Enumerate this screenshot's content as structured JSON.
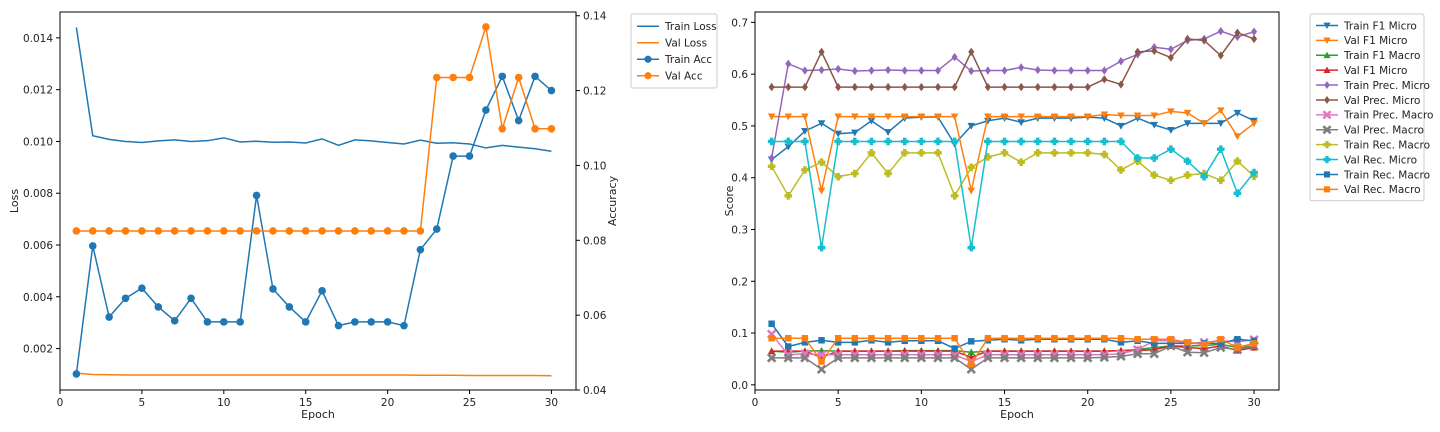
{
  "chart_data": [
    {
      "type": "line",
      "xlabel": "Epoch",
      "ylabel": "Loss",
      "y2label": "Accuracy",
      "xlim": [
        0,
        31.5
      ],
      "ylim": [
        0.0004,
        0.015
      ],
      "y2lim": [
        0.04,
        0.141
      ],
      "xticks": [
        0,
        5,
        10,
        15,
        20,
        25,
        30
      ],
      "yticks": [
        0.002,
        0.004,
        0.006,
        0.008,
        0.01,
        0.012,
        0.014
      ],
      "ytick_labels": [
        "0.002",
        "0.004",
        "0.006",
        "0.008",
        "0.010",
        "0.012",
        "0.014"
      ],
      "y2ticks": [
        0.04,
        0.06,
        0.08,
        0.1,
        0.12,
        0.14
      ],
      "y2tick_labels": [
        "0.04",
        "0.06",
        "0.08",
        "0.10",
        "0.12",
        "0.14"
      ],
      "legend_position": "outside-right-top",
      "x": [
        1,
        2,
        3,
        4,
        5,
        6,
        7,
        8,
        9,
        10,
        11,
        12,
        13,
        14,
        15,
        16,
        17,
        18,
        19,
        20,
        21,
        22,
        23,
        24,
        25,
        26,
        27,
        28,
        29,
        30
      ],
      "series": [
        {
          "name": "Train Loss",
          "axis": "left",
          "color": "#1f77b4",
          "marker": "none",
          "values": [
            0.0144,
            0.01022,
            0.01008,
            0.01,
            0.00996,
            0.01002,
            0.01006,
            0.01,
            0.01003,
            0.01014,
            0.00998,
            0.01001,
            0.00997,
            0.00998,
            0.00994,
            0.0101,
            0.00985,
            0.01006,
            0.01002,
            0.00996,
            0.0099,
            0.01005,
            0.00993,
            0.00995,
            0.0099,
            0.00975,
            0.00985,
            0.00978,
            0.00972,
            0.00962
          ]
        },
        {
          "name": "Val Loss",
          "axis": "left",
          "color": "#ff7f0e",
          "marker": "none",
          "values": [
            0.00105,
            0.001,
            0.00099,
            0.00098,
            0.00098,
            0.00098,
            0.00098,
            0.00098,
            0.00098,
            0.00098,
            0.00098,
            0.00098,
            0.00098,
            0.00098,
            0.00098,
            0.00098,
            0.00098,
            0.00098,
            0.00098,
            0.00098,
            0.00098,
            0.00097,
            0.00097,
            0.00097,
            0.00096,
            0.00096,
            0.00096,
            0.00096,
            0.00096,
            0.00095
          ]
        },
        {
          "name": "Train Acc",
          "axis": "right",
          "color": "#1f77b4",
          "marker": "circle",
          "values": [
            0.0443,
            0.0785,
            0.0595,
            0.0645,
            0.0672,
            0.0622,
            0.0585,
            0.0645,
            0.0582,
            0.0582,
            0.0582,
            0.092,
            0.067,
            0.0622,
            0.0582,
            0.0665,
            0.0572,
            0.0582,
            0.0582,
            0.0582,
            0.0572,
            0.0775,
            0.083,
            0.1025,
            0.1025,
            0.1148,
            0.1238,
            0.112,
            0.1238,
            0.12
          ]
        },
        {
          "name": "Val Acc",
          "axis": "right",
          "color": "#ff7f0e",
          "marker": "circle",
          "values": [
            0.0825,
            0.0825,
            0.0825,
            0.0825,
            0.0825,
            0.0825,
            0.0825,
            0.0825,
            0.0825,
            0.0825,
            0.0825,
            0.0825,
            0.0825,
            0.0825,
            0.0825,
            0.0825,
            0.0825,
            0.0825,
            0.0825,
            0.0825,
            0.0825,
            0.0825,
            0.1235,
            0.1235,
            0.1235,
            0.137,
            0.1098,
            0.1235,
            0.1098,
            0.1098
          ]
        }
      ]
    },
    {
      "type": "line",
      "xlabel": "Epoch",
      "ylabel": "Score",
      "xlim": [
        0,
        31.5
      ],
      "ylim": [
        -0.01,
        0.72
      ],
      "xticks": [
        0,
        5,
        10,
        15,
        20,
        25,
        30
      ],
      "yticks": [
        0.0,
        0.1,
        0.2,
        0.3,
        0.4,
        0.5,
        0.6,
        0.7
      ],
      "ytick_labels": [
        "0.0",
        "0.1",
        "0.2",
        "0.3",
        "0.4",
        "0.5",
        "0.6",
        "0.7"
      ],
      "legend_position": "outside-right-top",
      "x": [
        1,
        2,
        3,
        4,
        5,
        6,
        7,
        8,
        9,
        10,
        11,
        12,
        13,
        14,
        15,
        16,
        17,
        18,
        19,
        20,
        21,
        22,
        23,
        24,
        25,
        26,
        27,
        28,
        29,
        30
      ],
      "series": [
        {
          "name": "Train F1 Micro",
          "color": "#1f77b4",
          "marker": "triangle-down",
          "values": [
            0.435,
            0.46,
            0.49,
            0.505,
            0.485,
            0.487,
            0.51,
            0.488,
            0.515,
            0.517,
            0.517,
            0.465,
            0.5,
            0.51,
            0.515,
            0.507,
            0.515,
            0.515,
            0.515,
            0.517,
            0.515,
            0.5,
            0.515,
            0.502,
            0.492,
            0.505,
            0.505,
            0.505,
            0.525,
            0.51
          ]
        },
        {
          "name": "Val F1 Micro",
          "color": "#ff7f0e",
          "marker": "triangle-down",
          "values": [
            0.518,
            0.518,
            0.518,
            0.375,
            0.518,
            0.518,
            0.518,
            0.518,
            0.518,
            0.518,
            0.518,
            0.518,
            0.375,
            0.518,
            0.518,
            0.518,
            0.518,
            0.518,
            0.518,
            0.518,
            0.522,
            0.52,
            0.52,
            0.52,
            0.528,
            0.525,
            0.505,
            0.53,
            0.48,
            0.505
          ]
        },
        {
          "name": "Train F1 Macro",
          "color": "#2ca02c",
          "marker": "triangle-up",
          "values": [
            0.065,
            0.063,
            0.065,
            0.066,
            0.065,
            0.065,
            0.065,
            0.065,
            0.066,
            0.066,
            0.066,
            0.066,
            0.063,
            0.065,
            0.065,
            0.065,
            0.065,
            0.065,
            0.065,
            0.065,
            0.065,
            0.066,
            0.068,
            0.072,
            0.075,
            0.075,
            0.076,
            0.078,
            0.072,
            0.075
          ]
        },
        {
          "name": "Val F1 Micro",
          "color": "#d62728",
          "marker": "triangle-up",
          "values": [
            0.065,
            0.065,
            0.065,
            0.053,
            0.065,
            0.065,
            0.065,
            0.065,
            0.065,
            0.065,
            0.065,
            0.065,
            0.053,
            0.065,
            0.065,
            0.065,
            0.065,
            0.065,
            0.065,
            0.065,
            0.065,
            0.066,
            0.066,
            0.068,
            0.075,
            0.072,
            0.07,
            0.075,
            0.066,
            0.072
          ]
        },
        {
          "name": "Train Prec. Micro",
          "color": "#9467bd",
          "marker": "diamond",
          "values": [
            0.438,
            0.62,
            0.607,
            0.608,
            0.61,
            0.606,
            0.607,
            0.608,
            0.607,
            0.607,
            0.607,
            0.633,
            0.606,
            0.607,
            0.607,
            0.613,
            0.608,
            0.607,
            0.607,
            0.607,
            0.607,
            0.625,
            0.638,
            0.652,
            0.648,
            0.665,
            0.668,
            0.683,
            0.672,
            0.682
          ]
        },
        {
          "name": "Val Prec. Micro",
          "color": "#8c564b",
          "marker": "diamond",
          "values": [
            0.575,
            0.575,
            0.575,
            0.643,
            0.575,
            0.575,
            0.575,
            0.575,
            0.575,
            0.575,
            0.575,
            0.575,
            0.643,
            0.575,
            0.575,
            0.575,
            0.575,
            0.575,
            0.575,
            0.575,
            0.59,
            0.58,
            0.643,
            0.645,
            0.632,
            0.668,
            0.665,
            0.636,
            0.68,
            0.668
          ]
        },
        {
          "name": "Train Prec. Macro",
          "color": "#e377c2",
          "marker": "x",
          "values": [
            0.098,
            0.058,
            0.06,
            0.058,
            0.058,
            0.058,
            0.058,
            0.058,
            0.058,
            0.058,
            0.058,
            0.058,
            0.045,
            0.058,
            0.058,
            0.058,
            0.058,
            0.058,
            0.058,
            0.058,
            0.058,
            0.06,
            0.068,
            0.085,
            0.085,
            0.08,
            0.082,
            0.085,
            0.083,
            0.087
          ]
        },
        {
          "name": "Val Prec. Macro",
          "color": "#7f7f7f",
          "marker": "x",
          "values": [
            0.052,
            0.052,
            0.052,
            0.03,
            0.052,
            0.052,
            0.052,
            0.052,
            0.052,
            0.052,
            0.052,
            0.052,
            0.03,
            0.052,
            0.052,
            0.052,
            0.052,
            0.052,
            0.052,
            0.052,
            0.053,
            0.055,
            0.06,
            0.06,
            0.075,
            0.063,
            0.062,
            0.072,
            0.068,
            0.075
          ]
        },
        {
          "name": "Train Rec. Macro",
          "color": "#bcbd22",
          "marker": "plus",
          "values": [
            0.422,
            0.365,
            0.415,
            0.43,
            0.402,
            0.408,
            0.448,
            0.408,
            0.448,
            0.448,
            0.448,
            0.365,
            0.42,
            0.44,
            0.448,
            0.43,
            0.448,
            0.448,
            0.448,
            0.448,
            0.445,
            0.415,
            0.432,
            0.405,
            0.395,
            0.405,
            0.408,
            0.395,
            0.432,
            0.403
          ]
        },
        {
          "name": "Val Rec. Micro",
          "color": "#17becf",
          "marker": "plus",
          "values": [
            0.47,
            0.47,
            0.47,
            0.265,
            0.47,
            0.47,
            0.47,
            0.47,
            0.47,
            0.47,
            0.47,
            0.47,
            0.265,
            0.47,
            0.47,
            0.47,
            0.47,
            0.47,
            0.47,
            0.47,
            0.47,
            0.47,
            0.438,
            0.438,
            0.455,
            0.432,
            0.402,
            0.455,
            0.37,
            0.41
          ]
        },
        {
          "name": "Train Rec. Macro",
          "color": "#1f77b4",
          "marker": "square",
          "values": [
            0.118,
            0.074,
            0.082,
            0.086,
            0.082,
            0.082,
            0.086,
            0.082,
            0.085,
            0.085,
            0.085,
            0.07,
            0.084,
            0.086,
            0.088,
            0.086,
            0.088,
            0.088,
            0.088,
            0.088,
            0.088,
            0.082,
            0.085,
            0.08,
            0.08,
            0.08,
            0.08,
            0.08,
            0.088,
            0.085
          ]
        },
        {
          "name": "Val Rec. Macro",
          "color": "#ff7f0e",
          "marker": "square",
          "values": [
            0.09,
            0.09,
            0.09,
            0.045,
            0.09,
            0.09,
            0.09,
            0.09,
            0.09,
            0.09,
            0.09,
            0.09,
            0.04,
            0.09,
            0.09,
            0.09,
            0.09,
            0.09,
            0.09,
            0.09,
            0.09,
            0.09,
            0.088,
            0.088,
            0.088,
            0.082,
            0.078,
            0.088,
            0.072,
            0.08
          ]
        }
      ]
    }
  ]
}
